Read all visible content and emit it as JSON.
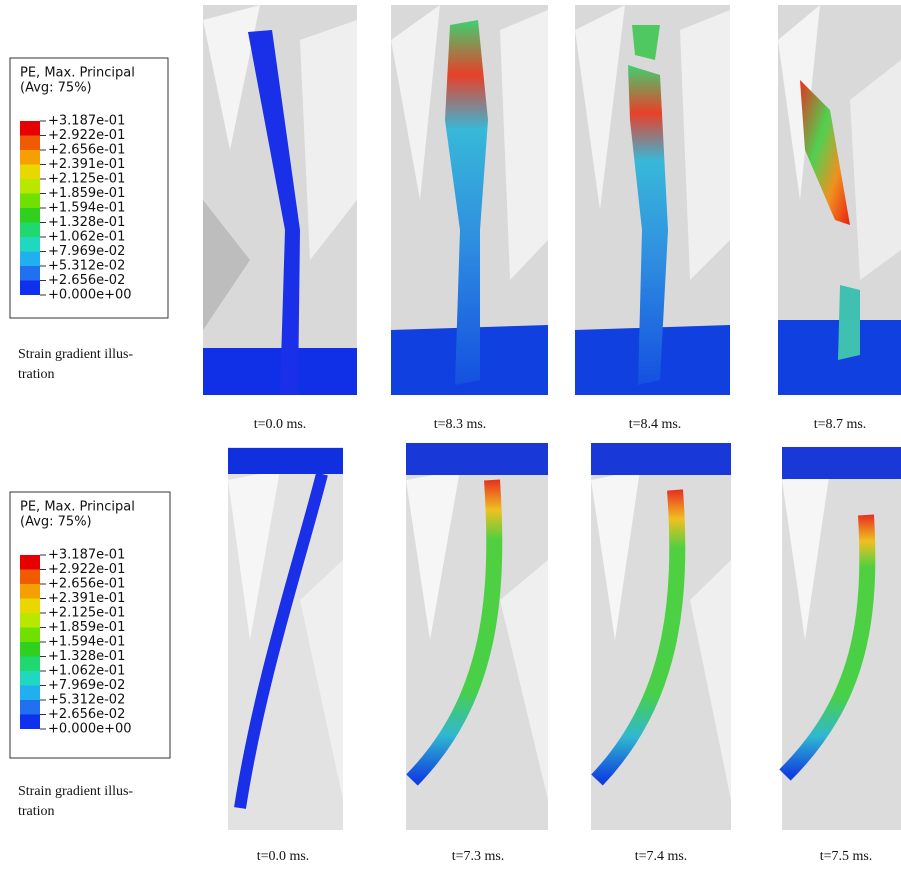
{
  "rows": [
    {
      "legend": {
        "title": "PE, Max. Principal",
        "subtitle": "(Avg: 75%)",
        "levels": [
          "+3.187e-01",
          "+2.922e-01",
          "+2.656e-01",
          "+2.391e-01",
          "+2.125e-01",
          "+1.859e-01",
          "+1.594e-01",
          "+1.328e-01",
          "+1.062e-01",
          "+7.969e-02",
          "+5.312e-02",
          "+2.656e-02",
          "+0.000e+00"
        ]
      },
      "caption": [
        "Strain gradient illus-",
        "tration"
      ],
      "panels": [
        {
          "time": "t=0.0 ms."
        },
        {
          "time": "t=8.3 ms."
        },
        {
          "time": "t=8.4 ms."
        },
        {
          "time": "t=8.7 ms."
        }
      ]
    },
    {
      "legend": {
        "title": "PE, Max. Principal",
        "subtitle": "(Avg: 75%)",
        "levels": [
          "+3.187e-01",
          "+2.922e-01",
          "+2.656e-01",
          "+2.391e-01",
          "+2.125e-01",
          "+1.859e-01",
          "+1.594e-01",
          "+1.328e-01",
          "+1.062e-01",
          "+7.969e-02",
          "+5.312e-02",
          "+2.656e-02",
          "+0.000e+00"
        ]
      },
      "caption": [
        "Strain gradient illus-",
        "tration"
      ],
      "panels": [
        {
          "time": "t=0.0 ms."
        },
        {
          "time": "t=7.3 ms."
        },
        {
          "time": "t=7.4 ms."
        },
        {
          "time": "t=7.5 ms."
        }
      ]
    }
  ]
}
